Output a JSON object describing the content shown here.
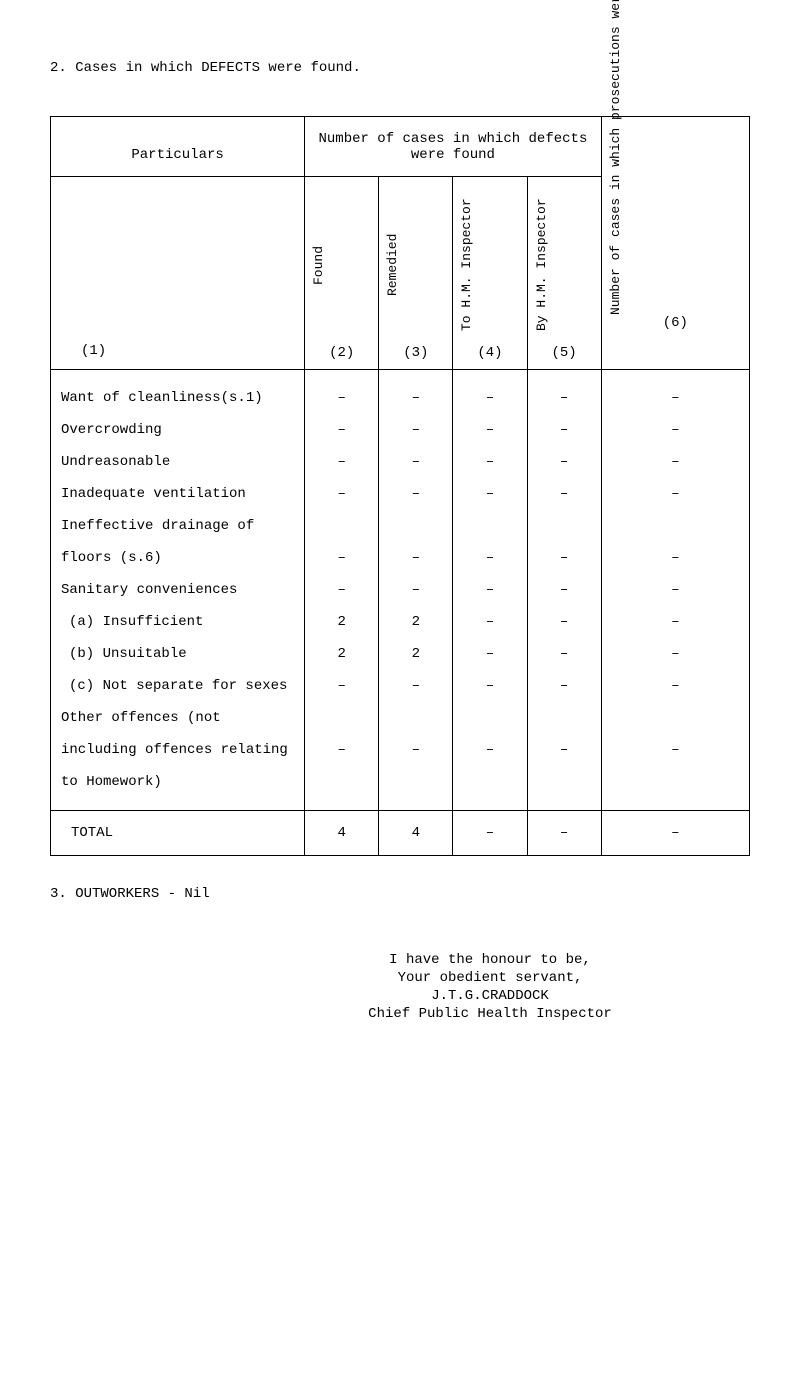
{
  "heading": "2. Cases in which DEFECTS were found.",
  "table": {
    "header": {
      "particulars": "Particulars",
      "number_header": "Number of cases in which defects were found",
      "col1": "(1)",
      "col2_label": "Found",
      "col2_num": "(2)",
      "col3_label": "Remedied",
      "col3_num": "(3)",
      "col4_label": "To H.M. Inspector",
      "col4_num": "(4)",
      "col5_label": "By H.M. Inspector",
      "col5_num": "(5)",
      "col6_label": "Number of cases in which prosecutions were instituted.",
      "col6_num": "(6)"
    },
    "rows": [
      {
        "label": "Want of cleanliness(s.1)",
        "c2": "–",
        "c3": "–",
        "c4": "–",
        "c5": "–",
        "c6": "–",
        "indent": false
      },
      {
        "label": "Overcrowding",
        "c2": "–",
        "c3": "–",
        "c4": "–",
        "c5": "–",
        "c6": "–",
        "indent": false
      },
      {
        "label": "Undreasonable",
        "c2": "–",
        "c3": "–",
        "c4": "–",
        "c5": "–",
        "c6": "–",
        "indent": false
      },
      {
        "label": "Inadequate ventilation",
        "c2": "–",
        "c3": "–",
        "c4": "–",
        "c5": "–",
        "c6": "–",
        "indent": false
      },
      {
        "label": "Ineffective drainage of",
        "c2": "",
        "c3": "",
        "c4": "",
        "c5": "",
        "c6": "",
        "indent": false
      },
      {
        "label": "floors (s.6)",
        "c2": "–",
        "c3": "–",
        "c4": "–",
        "c5": "–",
        "c6": "–",
        "indent": false
      },
      {
        "label": "Sanitary conveniences",
        "c2": "–",
        "c3": "–",
        "c4": "–",
        "c5": "–",
        "c6": "–",
        "indent": false
      },
      {
        "label": "(a) Insufficient",
        "c2": "2",
        "c3": "2",
        "c4": "–",
        "c5": "–",
        "c6": "–",
        "indent": true
      },
      {
        "label": "(b) Unsuitable",
        "c2": "2",
        "c3": "2",
        "c4": "–",
        "c5": "–",
        "c6": "–",
        "indent": true
      },
      {
        "label": "(c) Not separate for sexes",
        "c2": "–",
        "c3": "–",
        "c4": "–",
        "c5": "–",
        "c6": "–",
        "indent": true
      },
      {
        "label": "Other offences (not",
        "c2": "",
        "c3": "",
        "c4": "",
        "c5": "",
        "c6": "",
        "indent": false
      },
      {
        "label": "including offences relating",
        "c2": "–",
        "c3": "–",
        "c4": "–",
        "c5": "–",
        "c6": "–",
        "indent": false
      },
      {
        "label": "to Homework)",
        "c2": "",
        "c3": "",
        "c4": "",
        "c5": "",
        "c6": "",
        "indent": false
      }
    ],
    "total": {
      "label": "TOTAL",
      "c2": "4",
      "c3": "4",
      "c4": "–",
      "c5": "–",
      "c6": "–"
    }
  },
  "footer": "3. OUTWORKERS - Nil",
  "signature": {
    "line1": "I have the honour to be,",
    "line2": "Your obedient servant,",
    "line3": "J.T.G.CRADDOCK",
    "line4": "Chief Public Health Inspector"
  }
}
